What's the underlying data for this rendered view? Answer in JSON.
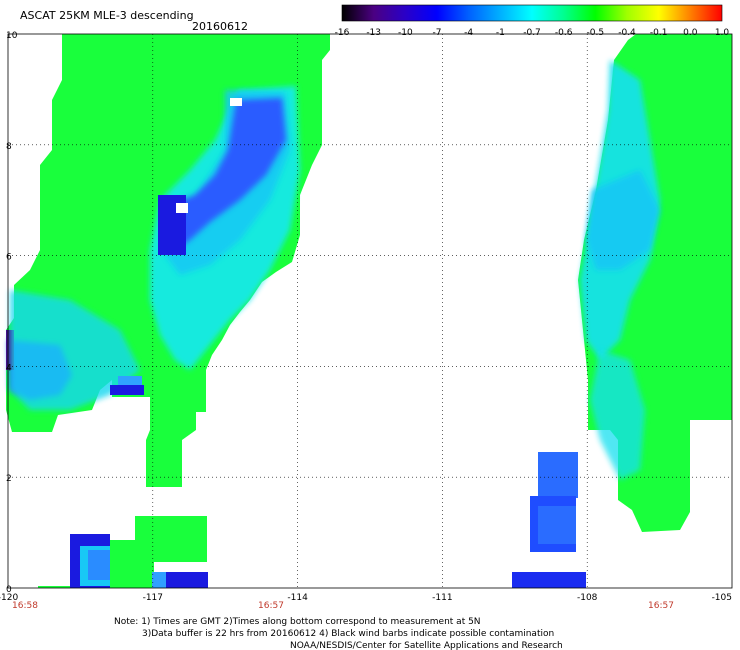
{
  "header": {
    "title": "ASCAT 25KM MLE-3 descending",
    "date": "20160612"
  },
  "colorbar": {
    "labels": [
      "-16",
      "-13",
      "-10",
      "-7",
      "-4",
      "-1",
      "-0.7",
      "-0.6",
      "-0.5",
      "-0.4",
      "-0.1",
      "0.0",
      "1.0"
    ],
    "colors": [
      "#000000",
      "#4b0082",
      "#2a00c8",
      "#0000ff",
      "#0060ff",
      "#00b0ff",
      "#00ffff",
      "#00ff90",
      "#00ff00",
      "#a0ff00",
      "#ffff00",
      "#ff8000",
      "#ff0000"
    ]
  },
  "axes": {
    "x_ticks": [
      "-120",
      "-117",
      "-114",
      "-111",
      "-108",
      "-105"
    ],
    "y_ticks": [
      "0",
      "2",
      "4",
      "6",
      "8",
      "10"
    ]
  },
  "times": [
    "16:58",
    "16:57",
    "16:57"
  ],
  "notes": [
    "Note: 1) Times are GMT 2)Times along bottom correspond to measurement at 5N",
    "3)Data buffer is 22 hrs from 20160612 4) Black wind barbs indicate possible contamination",
    "NOAA/NESDIS/Center for Satellite Applications and Research"
  ],
  "chart_data": {
    "type": "heatmap",
    "title": "ASCAT 25KM MLE-3 descending",
    "date": "20160612",
    "x_range": [
      -120,
      -105
    ],
    "y_range": [
      0,
      10
    ],
    "colorbar_labels": [
      "-16",
      "-13",
      "-10",
      "-7",
      "-4",
      "-1",
      "-0.7",
      "-0.6",
      "-0.5",
      "-0.4",
      "-0.1",
      "0.0",
      "1.0"
    ],
    "dominant_value_range": [
      -1,
      -0.5
    ],
    "gridlines": "dotted",
    "swaths": [
      {
        "lon_range": [
          -120,
          -113.6
        ],
        "lat_range": [
          0,
          10
        ],
        "dominant": "green",
        "pockets": "blue"
      },
      {
        "lon_range": [
          -109.5,
          -104.9
        ],
        "lat_range": [
          0,
          10
        ],
        "dominant": "green",
        "pockets": "blue"
      }
    ]
  }
}
